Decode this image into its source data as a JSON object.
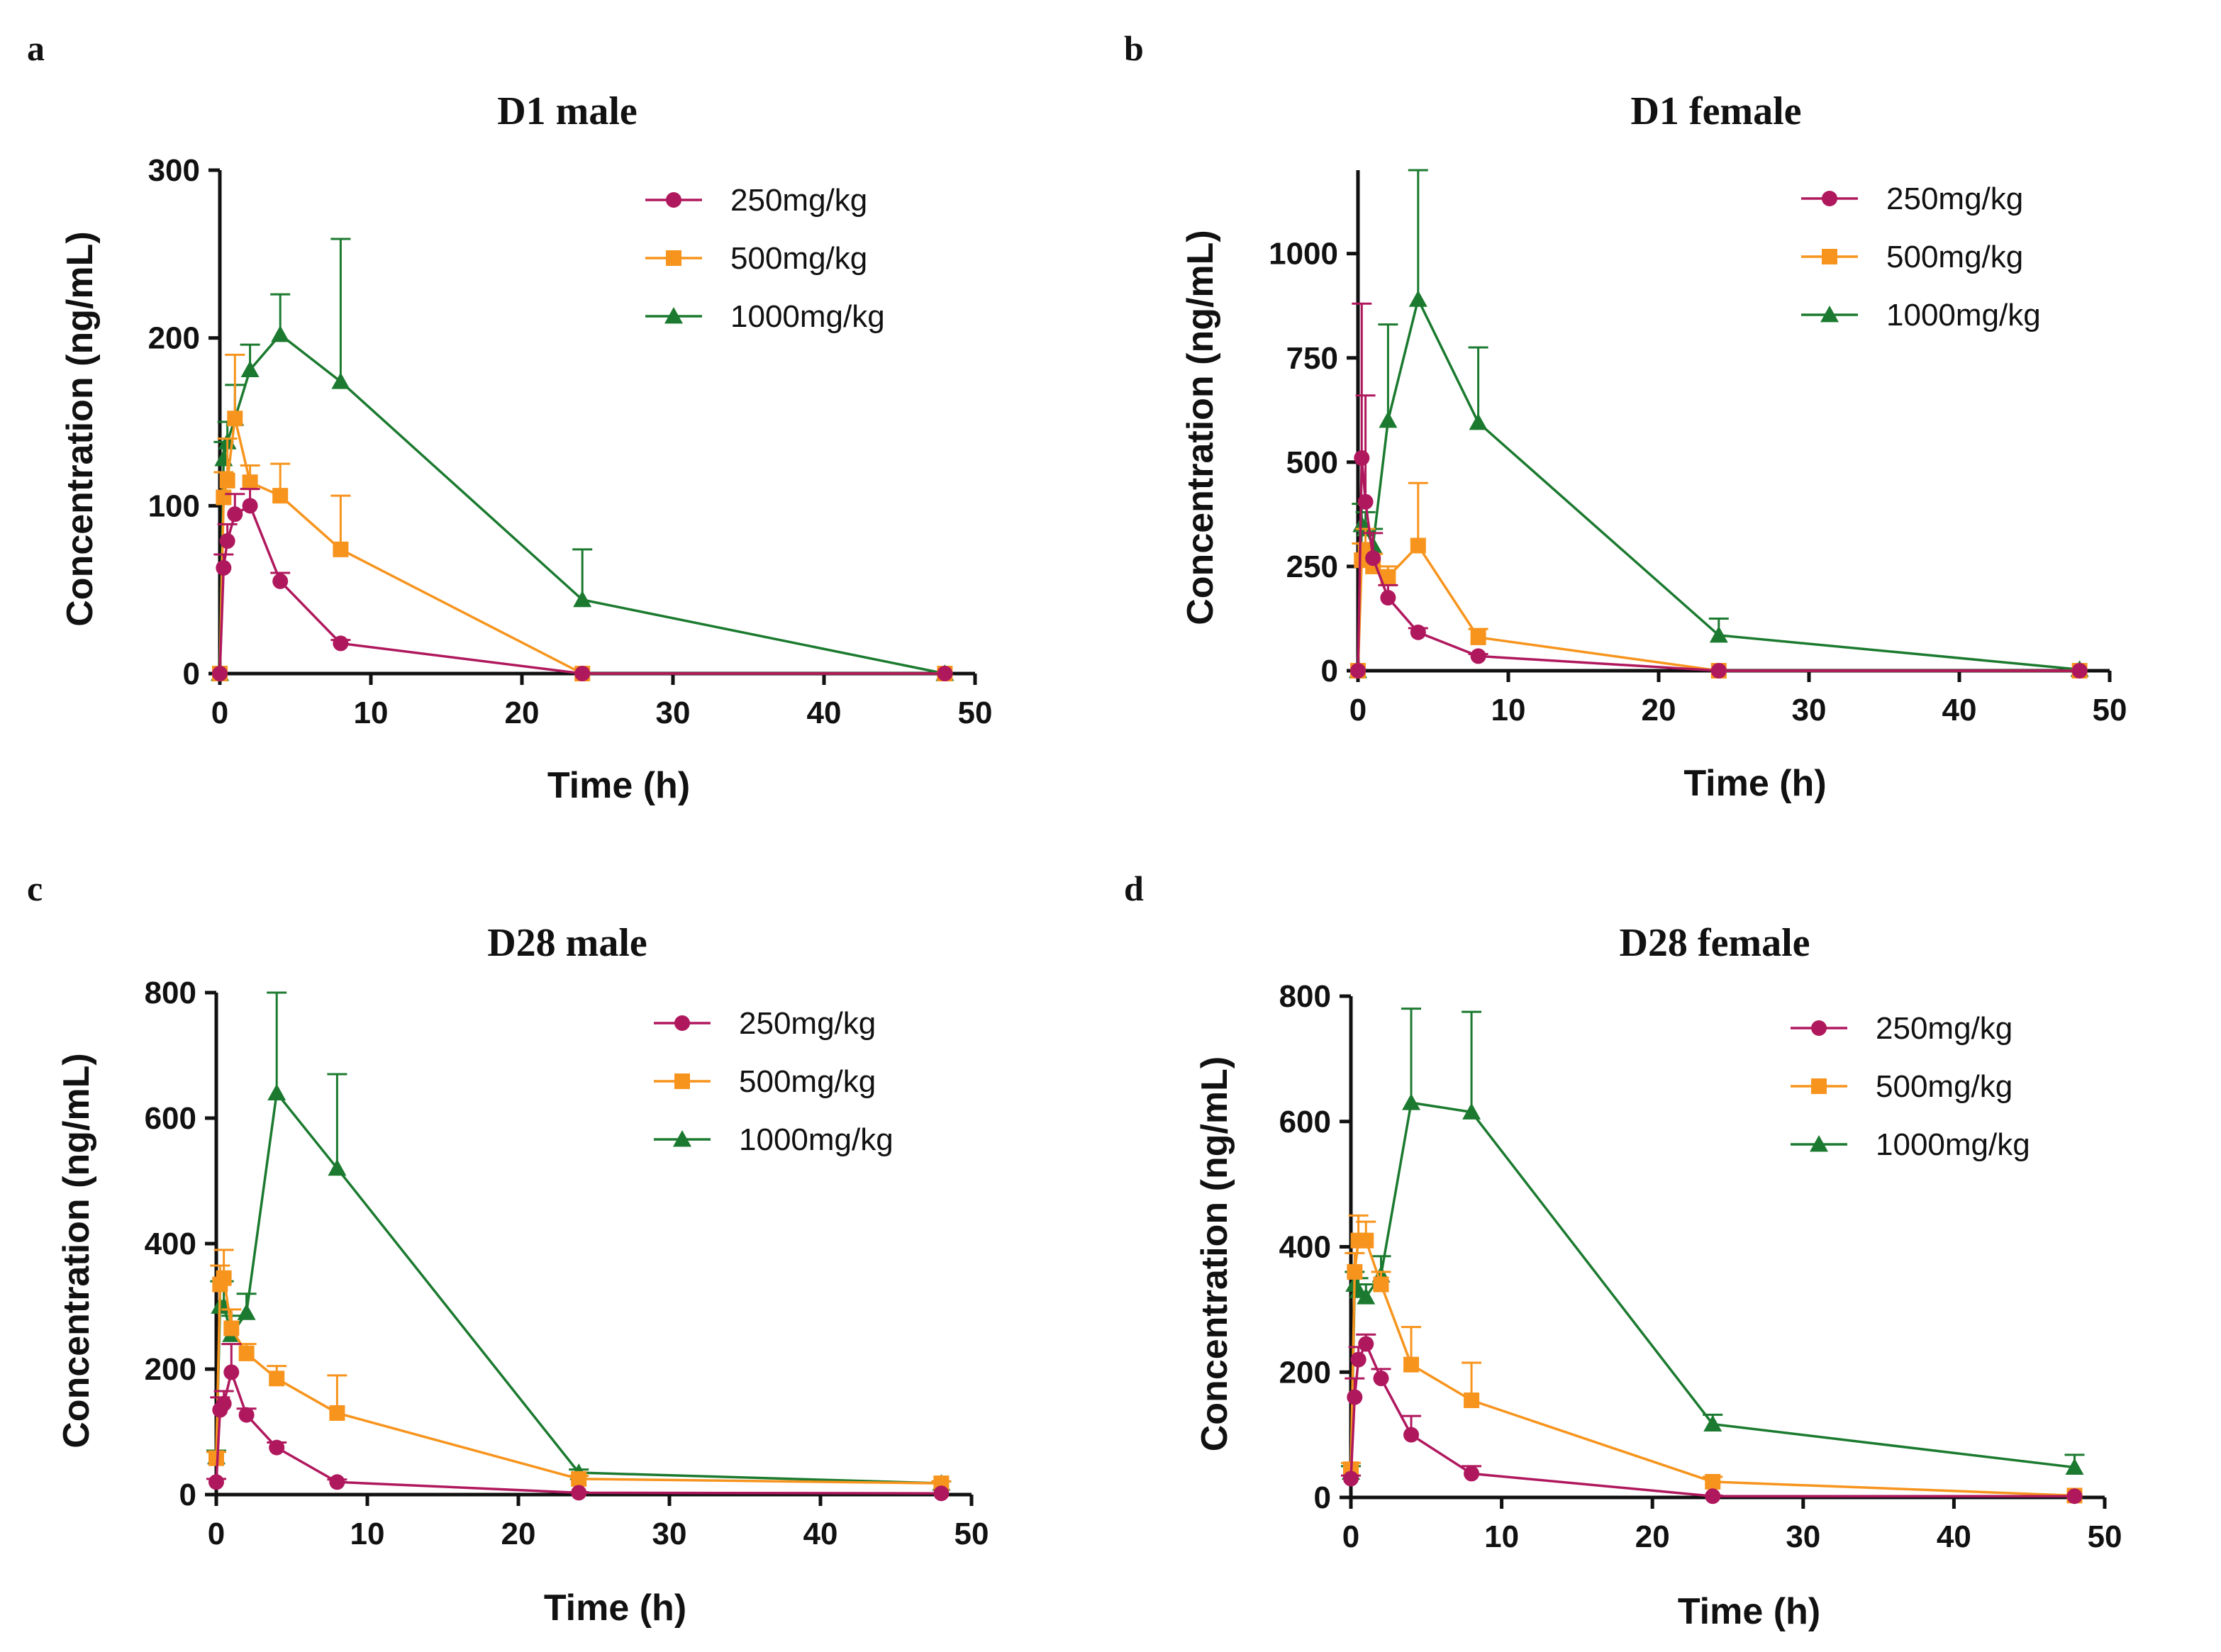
{
  "chart_data": [
    {
      "panel": "a",
      "type": "line",
      "title": "D1 male",
      "xlabel": "Time (h)",
      "ylabel": "Concentration (ng/mL)",
      "xlim": [
        0,
        50
      ],
      "ylim": [
        0,
        300
      ],
      "xticks": [
        0,
        10,
        20,
        30,
        40,
        50
      ],
      "yticks": [
        0,
        100,
        200,
        300
      ],
      "legend": "top-right",
      "series": [
        {
          "name": "250mg/kg",
          "color": "#b0185e",
          "marker": "circle",
          "x": [
            0,
            0.25,
            0.5,
            1,
            2,
            4,
            8,
            24,
            48
          ],
          "values": [
            0,
            63,
            79,
            95,
            100,
            55,
            18,
            0,
            0
          ],
          "errors": [
            0,
            8,
            10,
            12,
            10,
            5,
            2,
            0,
            0
          ]
        },
        {
          "name": "500mg/kg",
          "color": "#f7941d",
          "marker": "square",
          "x": [
            0,
            0.25,
            0.5,
            1,
            2,
            4,
            8,
            24,
            48
          ],
          "values": [
            0,
            105,
            115,
            152,
            114,
            106,
            74,
            0,
            0
          ],
          "errors": [
            0,
            15,
            25,
            38,
            10,
            19,
            32,
            0,
            0
          ]
        },
        {
          "name": "1000mg/kg",
          "color": "#1b7a2f",
          "marker": "triangle",
          "x": [
            0,
            0.25,
            0.5,
            1,
            2,
            4,
            8,
            24,
            48
          ],
          "values": [
            0,
            128,
            138,
            152,
            181,
            202,
            174,
            44,
            0
          ],
          "errors": [
            0,
            10,
            12,
            20,
            15,
            24,
            85,
            30,
            0
          ]
        }
      ]
    },
    {
      "panel": "b",
      "type": "line",
      "title": "D1 female",
      "xlabel": "Time (h)",
      "ylabel": "Concentration (ng/mL)",
      "xlim": [
        0,
        50
      ],
      "ylim": [
        0,
        1200
      ],
      "xticks": [
        0,
        10,
        20,
        30,
        40,
        50
      ],
      "yticks": [
        0,
        250,
        500,
        750,
        1000
      ],
      "legend": "top-right",
      "series": [
        {
          "name": "250mg/kg",
          "color": "#b0185e",
          "marker": "circle",
          "x": [
            0,
            0.25,
            0.5,
            1,
            2,
            4,
            8,
            24,
            48
          ],
          "values": [
            0,
            510,
            405,
            270,
            175,
            92,
            35,
            0,
            0
          ],
          "errors": [
            0,
            370,
            255,
            60,
            30,
            10,
            5,
            0,
            0
          ]
        },
        {
          "name": "500mg/kg",
          "color": "#f7941d",
          "marker": "square",
          "x": [
            0,
            0.25,
            0.5,
            1,
            2,
            4,
            8,
            24,
            48
          ],
          "values": [
            0,
            265,
            290,
            250,
            225,
            300,
            80,
            0,
            0
          ],
          "errors": [
            0,
            40,
            50,
            30,
            25,
            150,
            20,
            0,
            0
          ]
        },
        {
          "name": "1000mg/kg",
          "color": "#1b7a2f",
          "marker": "triangle",
          "x": [
            0,
            0.25,
            0.5,
            1,
            2,
            4,
            8,
            24,
            48
          ],
          "values": [
            0,
            350,
            340,
            300,
            600,
            890,
            595,
            85,
            3
          ],
          "errors": [
            0,
            50,
            40,
            40,
            230,
            310,
            180,
            40,
            0
          ]
        }
      ]
    },
    {
      "panel": "c",
      "type": "line",
      "title": "D28 male",
      "xlabel": "Time (h)",
      "ylabel": "Concentration (ng/mL)",
      "xlim": [
        0,
        50
      ],
      "ylim": [
        0,
        800
      ],
      "xticks": [
        0,
        10,
        20,
        30,
        40,
        50
      ],
      "yticks": [
        0,
        200,
        400,
        600,
        800
      ],
      "legend": "top-right",
      "series": [
        {
          "name": "250mg/kg",
          "color": "#b0185e",
          "marker": "circle",
          "x": [
            0,
            0.25,
            0.5,
            1,
            2,
            4,
            8,
            24,
            48
          ],
          "values": [
            20,
            135,
            145,
            195,
            127,
            75,
            20,
            3,
            2
          ],
          "errors": [
            5,
            20,
            20,
            45,
            10,
            8,
            4,
            1,
            0
          ]
        },
        {
          "name": "500mg/kg",
          "color": "#f7941d",
          "marker": "square",
          "x": [
            0,
            0.25,
            0.5,
            1,
            2,
            4,
            8,
            24,
            48
          ],
          "values": [
            58,
            335,
            345,
            265,
            225,
            185,
            130,
            25,
            18
          ],
          "errors": [
            10,
            30,
            45,
            30,
            15,
            20,
            60,
            5,
            3
          ]
        },
        {
          "name": "1000mg/kg",
          "color": "#1b7a2f",
          "marker": "triangle",
          "x": [
            0,
            0.25,
            0.5,
            1,
            2,
            4,
            8,
            24,
            48
          ],
          "values": [
            60,
            300,
            300,
            255,
            290,
            640,
            520,
            35,
            18
          ],
          "errors": [
            10,
            40,
            40,
            30,
            30,
            190,
            150,
            5,
            3
          ]
        }
      ]
    },
    {
      "panel": "d",
      "type": "line",
      "title": "D28 female",
      "xlabel": "Time (h)",
      "ylabel": "Concentration (ng/mL)",
      "xlim": [
        0,
        50
      ],
      "ylim": [
        0,
        800
      ],
      "xticks": [
        0,
        10,
        20,
        30,
        40,
        50
      ],
      "yticks": [
        0,
        200,
        400,
        600,
        800
      ],
      "legend": "top-right",
      "series": [
        {
          "name": "250mg/kg",
          "color": "#b0185e",
          "marker": "circle",
          "x": [
            0,
            0.25,
            0.5,
            1,
            2,
            4,
            8,
            24,
            48
          ],
          "values": [
            30,
            160,
            220,
            245,
            190,
            100,
            38,
            2,
            2
          ],
          "errors": [
            5,
            30,
            20,
            15,
            15,
            30,
            12,
            1,
            0
          ]
        },
        {
          "name": "500mg/kg",
          "color": "#f7941d",
          "marker": "square",
          "x": [
            0,
            0.25,
            0.5,
            1,
            2,
            4,
            8,
            24,
            48
          ],
          "values": [
            45,
            360,
            410,
            410,
            340,
            212,
            155,
            25,
            3
          ],
          "errors": [
            10,
            30,
            40,
            30,
            20,
            60,
            60,
            8,
            0
          ]
        },
        {
          "name": "1000mg/kg",
          "color": "#1b7a2f",
          "marker": "triangle",
          "x": [
            0,
            0.25,
            0.5,
            1,
            2,
            4,
            8,
            24,
            48
          ],
          "values": [
            40,
            340,
            330,
            320,
            355,
            630,
            615,
            117,
            48
          ],
          "errors": [
            10,
            20,
            20,
            20,
            30,
            150,
            160,
            15,
            20
          ]
        }
      ]
    }
  ]
}
